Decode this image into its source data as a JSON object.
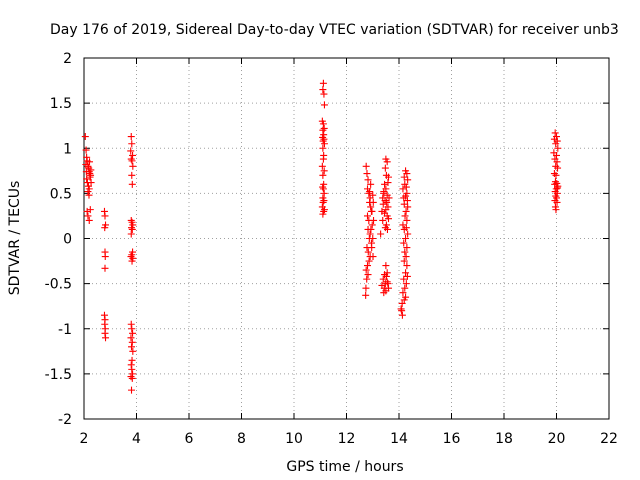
{
  "chart_data": {
    "type": "scatter",
    "title": "Day 176 of 2019, Sidereal Day-to-day VTEC variation (SDTVAR) for receiver unb3",
    "xlabel": "GPS time / hours",
    "ylabel": "SDTVAR / TECUs",
    "xlim": [
      2,
      22
    ],
    "ylim": [
      -2,
      2
    ],
    "xticks": [
      "2",
      "4",
      "6",
      "8",
      "10",
      "12",
      "14",
      "16",
      "18",
      "20",
      "22"
    ],
    "yticks": [
      "2",
      "1.5",
      "1",
      "0.5",
      "0",
      "-0.5",
      "-1",
      "-1.5",
      "-2"
    ],
    "grid": true,
    "marker": "plus",
    "color": "#ff0000",
    "clusters": [
      {
        "x": [
          2.0,
          2.3
        ],
        "y": [
          0.2,
          1.13
        ]
      },
      {
        "x": [
          2.75,
          2.85
        ],
        "y": [
          -1.1,
          0.3
        ]
      },
      {
        "x": [
          3.75,
          3.92
        ],
        "y": [
          -1.7,
          1.13
        ]
      },
      {
        "x": [
          11.0,
          11.22
        ],
        "y": [
          0.25,
          1.72
        ]
      },
      {
        "x": [
          12.7,
          13.05
        ],
        "y": [
          -0.63,
          0.81
        ]
      },
      {
        "x": [
          13.25,
          13.65
        ],
        "y": [
          -0.6,
          0.9
        ]
      },
      {
        "x": [
          14.05,
          14.38
        ],
        "y": [
          -0.88,
          0.77
        ]
      },
      {
        "x": [
          19.85,
          20.1
        ],
        "y": [
          0.32,
          1.17
        ]
      }
    ],
    "series": [
      {
        "name": "SDTVAR",
        "points": [
          [
            2.05,
            1.13
          ],
          [
            2.08,
            0.98
          ],
          [
            2.1,
            0.9
          ],
          [
            2.12,
            0.86
          ],
          [
            2.07,
            0.82
          ],
          [
            2.15,
            0.8
          ],
          [
            2.18,
            0.78
          ],
          [
            2.2,
            0.74
          ],
          [
            2.22,
            0.72
          ],
          [
            2.25,
            0.7
          ],
          [
            2.1,
            0.66
          ],
          [
            2.13,
            0.62
          ],
          [
            2.17,
            0.58
          ],
          [
            2.2,
            0.55
          ],
          [
            2.15,
            0.52
          ],
          [
            2.23,
            0.68
          ],
          [
            2.26,
            0.76
          ],
          [
            2.19,
            0.48
          ],
          [
            2.21,
            0.85
          ],
          [
            2.12,
            0.3
          ],
          [
            2.15,
            0.25
          ],
          [
            2.2,
            0.2
          ],
          [
            2.24,
            0.32
          ],
          [
            2.09,
            0.74
          ],
          [
            2.27,
            0.62
          ],
          [
            2.78,
            0.3
          ],
          [
            2.8,
            0.25
          ],
          [
            2.82,
            0.15
          ],
          [
            2.79,
            0.12
          ],
          [
            2.8,
            -0.15
          ],
          [
            2.81,
            -0.2
          ],
          [
            2.8,
            -0.33
          ],
          [
            2.78,
            -0.85
          ],
          [
            2.8,
            -0.9
          ],
          [
            2.79,
            -0.95
          ],
          [
            2.81,
            -1.0
          ],
          [
            2.8,
            -1.05
          ],
          [
            2.82,
            -1.1
          ],
          [
            3.8,
            1.13
          ],
          [
            3.82,
            1.05
          ],
          [
            3.78,
            0.97
          ],
          [
            3.85,
            0.92
          ],
          [
            3.8,
            0.88
          ],
          [
            3.83,
            0.86
          ],
          [
            3.86,
            0.8
          ],
          [
            3.82,
            0.7
          ],
          [
            3.84,
            0.6
          ],
          [
            3.8,
            0.2
          ],
          [
            3.83,
            0.18
          ],
          [
            3.86,
            0.15
          ],
          [
            3.81,
            0.12
          ],
          [
            3.84,
            0.1
          ],
          [
            3.8,
            0.05
          ],
          [
            3.85,
            -0.15
          ],
          [
            3.82,
            -0.18
          ],
          [
            3.79,
            -0.2
          ],
          [
            3.86,
            -0.22
          ],
          [
            3.83,
            -0.25
          ],
          [
            3.8,
            -0.95
          ],
          [
            3.82,
            -1.0
          ],
          [
            3.85,
            -1.05
          ],
          [
            3.79,
            -1.1
          ],
          [
            3.84,
            -1.15
          ],
          [
            3.81,
            -1.2
          ],
          [
            3.86,
            -1.25
          ],
          [
            3.83,
            -1.35
          ],
          [
            3.8,
            -1.4
          ],
          [
            3.82,
            -1.45
          ],
          [
            3.85,
            -1.5
          ],
          [
            3.79,
            -1.53
          ],
          [
            3.84,
            -1.55
          ],
          [
            3.81,
            -1.68
          ],
          [
            11.12,
            1.72
          ],
          [
            11.1,
            1.65
          ],
          [
            11.14,
            1.6
          ],
          [
            11.16,
            1.48
          ],
          [
            11.08,
            1.3
          ],
          [
            11.12,
            1.27
          ],
          [
            11.15,
            1.22
          ],
          [
            11.1,
            1.2
          ],
          [
            11.13,
            1.15
          ],
          [
            11.09,
            1.12
          ],
          [
            11.14,
            1.1
          ],
          [
            11.11,
            1.08
          ],
          [
            11.16,
            1.05
          ],
          [
            11.1,
            1.0
          ],
          [
            11.13,
            0.92
          ],
          [
            11.12,
            0.88
          ],
          [
            11.08,
            0.8
          ],
          [
            11.15,
            0.75
          ],
          [
            11.1,
            0.7
          ],
          [
            11.13,
            0.6
          ],
          [
            11.09,
            0.57
          ],
          [
            11.12,
            0.55
          ],
          [
            11.15,
            0.5
          ],
          [
            11.1,
            0.45
          ],
          [
            11.14,
            0.42
          ],
          [
            11.11,
            0.4
          ],
          [
            11.08,
            0.35
          ],
          [
            11.13,
            0.3
          ],
          [
            11.1,
            0.27
          ],
          [
            11.16,
            0.32
          ],
          [
            12.75,
            0.8
          ],
          [
            12.78,
            0.72
          ],
          [
            12.82,
            0.65
          ],
          [
            12.8,
            0.55
          ],
          [
            12.85,
            0.5
          ],
          [
            12.9,
            0.45
          ],
          [
            12.88,
            0.4
          ],
          [
            12.92,
            0.35
          ],
          [
            12.95,
            0.3
          ],
          [
            12.8,
            0.25
          ],
          [
            12.85,
            0.2
          ],
          [
            12.98,
            0.15
          ],
          [
            12.82,
            0.1
          ],
          [
            12.9,
            0.05
          ],
          [
            12.87,
            0.0
          ],
          [
            12.95,
            -0.05
          ],
          [
            12.78,
            -0.1
          ],
          [
            12.83,
            -0.15
          ],
          [
            12.9,
            -0.2
          ],
          [
            12.86,
            -0.25
          ],
          [
            12.8,
            -0.3
          ],
          [
            12.75,
            -0.35
          ],
          [
            12.82,
            -0.4
          ],
          [
            12.77,
            -0.45
          ],
          [
            12.74,
            -0.55
          ],
          [
            12.73,
            -0.63
          ],
          [
            13.0,
            0.48
          ],
          [
            13.02,
            0.4
          ],
          [
            12.97,
            0.3
          ],
          [
            13.03,
            0.2
          ],
          [
            12.93,
            0.1
          ],
          [
            13.0,
            0.0
          ],
          [
            12.96,
            -0.1
          ],
          [
            13.01,
            -0.2
          ],
          [
            12.92,
            0.6
          ],
          [
            12.88,
            0.52
          ],
          [
            13.5,
            0.88
          ],
          [
            13.55,
            0.85
          ],
          [
            13.48,
            0.78
          ],
          [
            13.52,
            0.7
          ],
          [
            13.6,
            0.68
          ],
          [
            13.45,
            0.6
          ],
          [
            13.58,
            0.62
          ],
          [
            13.5,
            0.55
          ],
          [
            13.42,
            0.52
          ],
          [
            13.55,
            0.48
          ],
          [
            13.62,
            0.45
          ],
          [
            13.47,
            0.42
          ],
          [
            13.53,
            0.4
          ],
          [
            13.4,
            0.38
          ],
          [
            13.58,
            0.35
          ],
          [
            13.5,
            0.32
          ],
          [
            13.35,
            0.3
          ],
          [
            13.45,
            0.28
          ],
          [
            13.55,
            0.25
          ],
          [
            13.6,
            0.22
          ],
          [
            13.38,
            0.2
          ],
          [
            13.52,
            0.15
          ],
          [
            13.48,
            0.12
          ],
          [
            13.56,
            0.1
          ],
          [
            13.3,
            0.05
          ],
          [
            13.42,
            0.5
          ],
          [
            13.38,
            0.45
          ],
          [
            13.5,
            -0.3
          ],
          [
            13.45,
            -0.4
          ],
          [
            13.52,
            -0.42
          ],
          [
            13.4,
            -0.45
          ],
          [
            13.55,
            -0.48
          ],
          [
            13.48,
            -0.5
          ],
          [
            13.35,
            -0.52
          ],
          [
            13.58,
            -0.5
          ],
          [
            13.44,
            -0.55
          ],
          [
            13.5,
            -0.58
          ],
          [
            13.6,
            -0.55
          ],
          [
            13.42,
            -0.6
          ],
          [
            13.55,
            -0.38
          ],
          [
            14.25,
            0.75
          ],
          [
            14.3,
            0.72
          ],
          [
            14.2,
            0.68
          ],
          [
            14.33,
            0.65
          ],
          [
            14.22,
            0.6
          ],
          [
            14.28,
            0.57
          ],
          [
            14.15,
            0.55
          ],
          [
            14.3,
            0.5
          ],
          [
            14.25,
            0.47
          ],
          [
            14.18,
            0.45
          ],
          [
            14.32,
            0.42
          ],
          [
            14.2,
            0.38
          ],
          [
            14.27,
            0.3
          ],
          [
            14.23,
            0.25
          ],
          [
            14.3,
            0.2
          ],
          [
            14.15,
            0.15
          ],
          [
            14.28,
            0.12
          ],
          [
            14.2,
            0.1
          ],
          [
            14.33,
            0.05
          ],
          [
            14.25,
            0.0
          ],
          [
            14.18,
            -0.05
          ],
          [
            14.3,
            -0.1
          ],
          [
            14.22,
            -0.15
          ],
          [
            14.27,
            -0.2
          ],
          [
            14.2,
            -0.25
          ],
          [
            14.3,
            -0.3
          ],
          [
            14.25,
            -0.38
          ],
          [
            14.32,
            -0.42
          ],
          [
            14.18,
            -0.45
          ],
          [
            14.28,
            -0.5
          ],
          [
            14.22,
            -0.55
          ],
          [
            14.15,
            -0.6
          ],
          [
            14.25,
            -0.65
          ],
          [
            14.2,
            -0.68
          ],
          [
            14.12,
            -0.72
          ],
          [
            14.1,
            -0.8
          ],
          [
            14.13,
            -0.85
          ],
          [
            14.33,
            0.35
          ],
          [
            14.08,
            -0.78
          ],
          [
            19.95,
            1.17
          ],
          [
            20.0,
            1.13
          ],
          [
            19.92,
            1.1
          ],
          [
            20.03,
            1.08
          ],
          [
            19.97,
            1.05
          ],
          [
            20.05,
            1.0
          ],
          [
            19.9,
            0.95
          ],
          [
            20.0,
            0.92
          ],
          [
            19.94,
            0.88
          ],
          [
            20.02,
            0.85
          ],
          [
            19.97,
            0.8
          ],
          [
            20.04,
            0.78
          ],
          [
            19.92,
            0.72
          ],
          [
            19.98,
            0.7
          ],
          [
            19.96,
            0.63
          ],
          [
            20.01,
            0.61
          ],
          [
            19.93,
            0.6
          ],
          [
            20.05,
            0.58
          ],
          [
            19.99,
            0.55
          ],
          [
            19.95,
            0.52
          ],
          [
            20.03,
            0.5
          ],
          [
            19.97,
            0.47
          ],
          [
            20.0,
            0.45
          ],
          [
            19.94,
            0.42
          ],
          [
            20.02,
            0.4
          ],
          [
            19.96,
            0.35
          ],
          [
            19.98,
            0.32
          ],
          [
            20.04,
            0.56
          ]
        ]
      }
    ]
  }
}
